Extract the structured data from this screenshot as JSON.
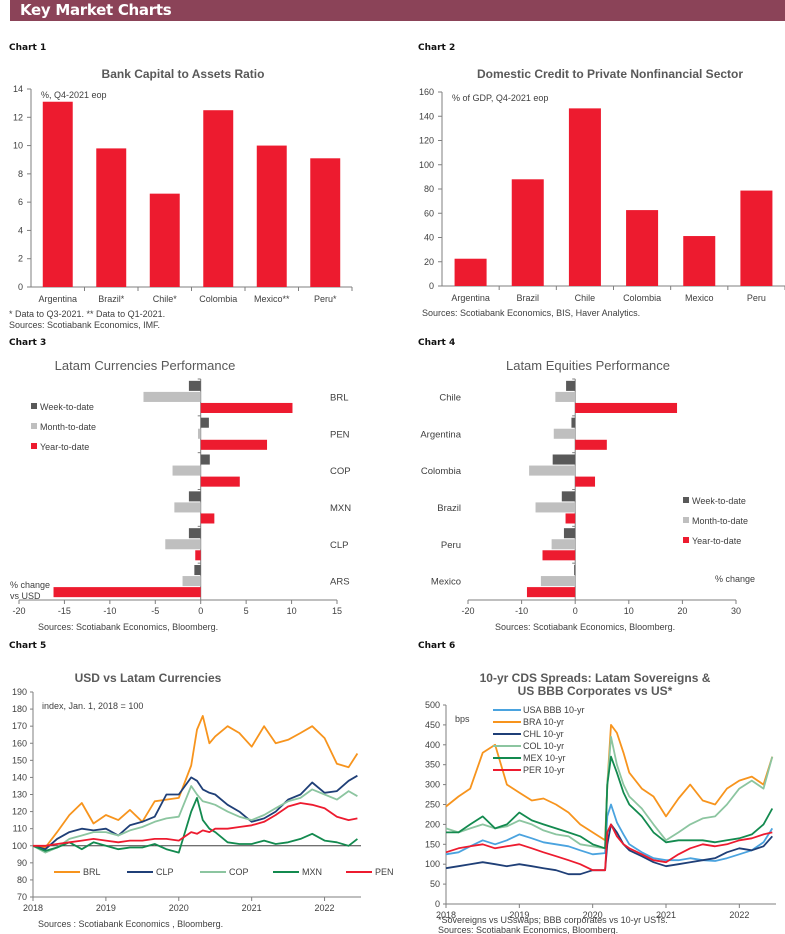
{
  "header": {
    "title": "Key Market Charts",
    "color": "#8b4358"
  },
  "colors": {
    "red": "#ed1b2f",
    "dark_gray": "#595959",
    "light_gray": "#bfbfbf",
    "orange": "#f7941d",
    "navy": "#1f3f77",
    "light_green": "#8cc5a0",
    "green": "#138a4f",
    "usa_blue": "#4aa3df"
  },
  "chart_data": [
    {
      "id": "chart1",
      "label": "Chart 1",
      "type": "bar",
      "title": "Bank Capital to Assets Ratio",
      "unit_note": "%, Q4-2021 eop",
      "categories": [
        "Argentina",
        "Brazil*",
        "Chile*",
        "Colombia",
        "Mexico**",
        "Peru*"
      ],
      "values": [
        13.1,
        9.8,
        6.6,
        12.5,
        10.0,
        9.1
      ],
      "ylim": [
        0,
        14
      ],
      "yticks": [
        0,
        2,
        4,
        6,
        8,
        10,
        12,
        14
      ],
      "xlabel": "",
      "ylabel": "",
      "grid": false,
      "footnotes": [
        "* Data to Q3-2021. ** Data to Q1-2021.",
        " Sources: Scotiabank Economics, IMF."
      ]
    },
    {
      "id": "chart2",
      "label": "Chart 2",
      "type": "bar",
      "title": "Domestic Credit to Private Nonfinancial  Sector",
      "unit_note": "% of GDP, Q4-2021 eop",
      "categories": [
        "Argentina",
        "Brazil",
        "Chile",
        "Colombia",
        "Mexico",
        "Peru"
      ],
      "values": [
        22.5,
        88,
        146.5,
        62.6,
        41.2,
        78.7
      ],
      "ylim": [
        0,
        160
      ],
      "yticks": [
        0,
        20,
        40,
        60,
        80,
        100,
        120,
        140,
        160
      ],
      "xlabel": "",
      "ylabel": "",
      "grid": false,
      "footnotes": [
        "Sources: Scotiabank Economics, BIS, Haver Analytics."
      ]
    },
    {
      "id": "chart3",
      "label": "Chart 3",
      "type": "bar",
      "orientation": "horizontal",
      "title": "Latam Currencies  Performance",
      "categories": [
        "BRL",
        "PEN",
        "COP",
        "MXN",
        "CLP",
        "ARS"
      ],
      "series": [
        {
          "name": "Week-to-date",
          "color_key": "dark_gray",
          "values": [
            -1.3,
            0.9,
            1.0,
            -1.3,
            -1.3,
            -0.7
          ]
        },
        {
          "name": "Month-to-date",
          "color_key": "light_gray",
          "values": [
            -6.3,
            -0.3,
            -3.1,
            -2.9,
            -3.9,
            -2.0
          ]
        },
        {
          "name": "Year-to-date",
          "color_key": "red",
          "values": [
            10.1,
            7.3,
            4.3,
            1.5,
            -0.6,
            -16.2
          ]
        }
      ],
      "xlim": [
        -20,
        15
      ],
      "xticks": [
        -20,
        -15,
        -10,
        -5,
        0,
        5,
        10,
        15
      ],
      "axis_note": [
        "% change",
        "vs USD"
      ],
      "legend_position": "left",
      "footnotes": [
        "Sources: Scotiabank Economics, Bloomberg."
      ]
    },
    {
      "id": "chart4",
      "label": "Chart 4",
      "type": "bar",
      "orientation": "horizontal",
      "title": "Latam Equities  Performance",
      "categories": [
        "Chile",
        "Argentina",
        "Colombia",
        "Brazil",
        "Peru",
        "Mexico"
      ],
      "series": [
        {
          "name": "Week-to-date",
          "color_key": "dark_gray",
          "values": [
            -1.7,
            -0.7,
            -4.2,
            -2.5,
            -2.1,
            -0.2
          ]
        },
        {
          "name": "Month-to-date",
          "color_key": "light_gray",
          "values": [
            -3.7,
            -4.0,
            -8.6,
            -7.4,
            -4.4,
            -6.4
          ]
        },
        {
          "name": "Year-to-date",
          "color_key": "red",
          "values": [
            19.0,
            5.9,
            3.7,
            -1.8,
            -6.1,
            -9.0
          ]
        }
      ],
      "xlim": [
        -20,
        30
      ],
      "xticks": [
        -20,
        -10,
        0,
        10,
        20,
        30
      ],
      "axis_note": [
        "% change"
      ],
      "legend_position": "right",
      "footnotes": [
        "Sources: Scotiabank Economics, Bloomberg."
      ]
    },
    {
      "id": "chart5",
      "label": "Chart 5",
      "type": "line",
      "title": "USD vs Latam Currencies",
      "unit_note": "index,  Jan. 1, 2018 =  100",
      "x": [
        2018.0,
        2018.17,
        2018.33,
        2018.5,
        2018.67,
        2018.83,
        2019.0,
        2019.17,
        2019.33,
        2019.5,
        2019.67,
        2019.83,
        2020.0,
        2020.17,
        2020.25,
        2020.33,
        2020.42,
        2020.5,
        2020.67,
        2020.83,
        2021.0,
        2021.17,
        2021.33,
        2021.5,
        2021.67,
        2021.83,
        2022.0,
        2022.17,
        2022.33,
        2022.45
      ],
      "series": [
        {
          "name": "BRL",
          "color_key": "orange",
          "values": [
            100,
            99,
            108,
            118,
            125,
            113,
            118,
            115,
            121,
            114,
            126,
            127,
            128,
            147,
            168,
            176,
            160,
            164,
            170,
            166,
            158,
            170,
            160,
            162,
            166,
            170,
            163,
            148,
            146,
            154
          ]
        },
        {
          "name": "CLP",
          "color_key": "navy",
          "values": [
            100,
            98,
            104,
            108,
            110,
            109,
            110,
            106,
            112,
            114,
            117,
            130,
            130,
            140,
            138,
            133,
            131,
            130,
            124,
            120,
            114,
            116,
            120,
            127,
            130,
            137,
            131,
            132,
            138,
            141
          ]
        },
        {
          "name": "COP",
          "color_key": "light_green",
          "values": [
            100,
            96,
            99,
            104,
            106,
            108,
            108,
            106,
            109,
            111,
            114,
            116,
            117,
            135,
            130,
            126,
            125,
            124,
            120,
            117,
            115,
            118,
            122,
            126,
            128,
            133,
            130,
            127,
            132,
            129
          ]
        },
        {
          "name": "MXN",
          "color_key": "green",
          "values": [
            100,
            97,
            99,
            102,
            98,
            102,
            100,
            98,
            99,
            99,
            101,
            98,
            96,
            120,
            128,
            115,
            110,
            108,
            102,
            101,
            101,
            103,
            101,
            102,
            104,
            107,
            103,
            102,
            100,
            104
          ]
        },
        {
          "name": "PEN",
          "color_key": "red",
          "values": [
            100,
            100,
            101,
            102,
            103,
            104,
            103,
            102,
            103,
            103,
            104,
            104,
            103,
            108,
            107,
            109,
            108,
            110,
            110,
            111,
            112,
            114,
            118,
            123,
            125,
            124,
            122,
            117,
            115,
            116
          ]
        }
      ],
      "xlim": [
        2018,
        2022.5
      ],
      "xticks": [
        "2018",
        "2019",
        "2020",
        "2021",
        "2022"
      ],
      "ylim": [
        70,
        190
      ],
      "yticks": [
        70,
        80,
        90,
        100,
        110,
        120,
        130,
        140,
        150,
        160,
        170,
        180,
        190
      ],
      "reference_line": 100,
      "legend_position": "bottom",
      "footnotes": [
        "Sources : Scotiabank  Economics , Bloomberg."
      ]
    },
    {
      "id": "chart6",
      "label": "Chart 6",
      "type": "line",
      "title": "10-yr CDS Spreads: Latam Sovereigns &",
      "title_line2": "US BBB Corporates vs US*",
      "unit_note": "bps",
      "x": [
        2018.0,
        2018.17,
        2018.33,
        2018.5,
        2018.67,
        2018.83,
        2019.0,
        2019.17,
        2019.33,
        2019.5,
        2019.67,
        2019.83,
        2020.0,
        2020.17,
        2020.2,
        2020.25,
        2020.33,
        2020.42,
        2020.5,
        2020.67,
        2020.83,
        2021.0,
        2021.17,
        2021.33,
        2021.5,
        2021.67,
        2021.83,
        2022.0,
        2022.17,
        2022.33,
        2022.45
      ],
      "series": [
        {
          "name": "USA BBB 10-yr",
          "color_key": "usa_blue",
          "values": [
            125,
            130,
            145,
            160,
            150,
            160,
            175,
            165,
            155,
            150,
            145,
            135,
            125,
            128,
            220,
            250,
            205,
            175,
            150,
            130,
            115,
            110,
            110,
            115,
            110,
            108,
            115,
            125,
            135,
            155,
            190
          ]
        },
        {
          "name": "BRA 10-yr",
          "color_key": "orange",
          "values": [
            245,
            270,
            290,
            380,
            400,
            300,
            280,
            260,
            265,
            250,
            230,
            200,
            180,
            160,
            300,
            450,
            430,
            380,
            330,
            290,
            270,
            220,
            265,
            300,
            260,
            250,
            290,
            310,
            320,
            300,
            370
          ]
        },
        {
          "name": "CHL 10-yr",
          "color_key": "navy",
          "values": [
            90,
            95,
            100,
            105,
            100,
            95,
            100,
            95,
            90,
            85,
            75,
            75,
            85,
            85,
            150,
            200,
            180,
            150,
            135,
            120,
            105,
            95,
            100,
            105,
            110,
            115,
            130,
            140,
            135,
            145,
            170
          ]
        },
        {
          "name": "COL 10-yr",
          "color_key": "light_green",
          "values": [
            190,
            180,
            190,
            200,
            190,
            195,
            210,
            200,
            185,
            175,
            170,
            150,
            145,
            140,
            300,
            420,
            350,
            300,
            270,
            240,
            200,
            160,
            180,
            200,
            215,
            220,
            250,
            290,
            310,
            290,
            370
          ]
        },
        {
          "name": "MEX 10-yr",
          "color_key": "green",
          "values": [
            180,
            180,
            200,
            220,
            190,
            200,
            230,
            210,
            200,
            190,
            180,
            170,
            150,
            140,
            300,
            370,
            330,
            280,
            250,
            220,
            180,
            155,
            160,
            160,
            160,
            155,
            160,
            165,
            175,
            200,
            240
          ]
        },
        {
          "name": "PER 10-yr",
          "color_key": "red",
          "values": [
            130,
            140,
            145,
            150,
            140,
            145,
            150,
            140,
            130,
            120,
            110,
            100,
            85,
            85,
            180,
            200,
            170,
            150,
            140,
            125,
            110,
            105,
            125,
            140,
            150,
            145,
            150,
            160,
            165,
            175,
            180
          ]
        }
      ],
      "xlim": [
        2018,
        2022.5
      ],
      "xticks": [
        "2018",
        "2019",
        "2020",
        "2021",
        "2022"
      ],
      "ylim": [
        0,
        500
      ],
      "yticks": [
        0,
        50,
        100,
        150,
        200,
        250,
        300,
        350,
        400,
        450,
        500
      ],
      "legend_position": "top-left",
      "footnotes": [
        "*Sovereigns vs USswaps; BBB corporates vs 10-yr USTs.",
        "Sources: Scotiabank Economics, Bloomberg."
      ]
    }
  ]
}
